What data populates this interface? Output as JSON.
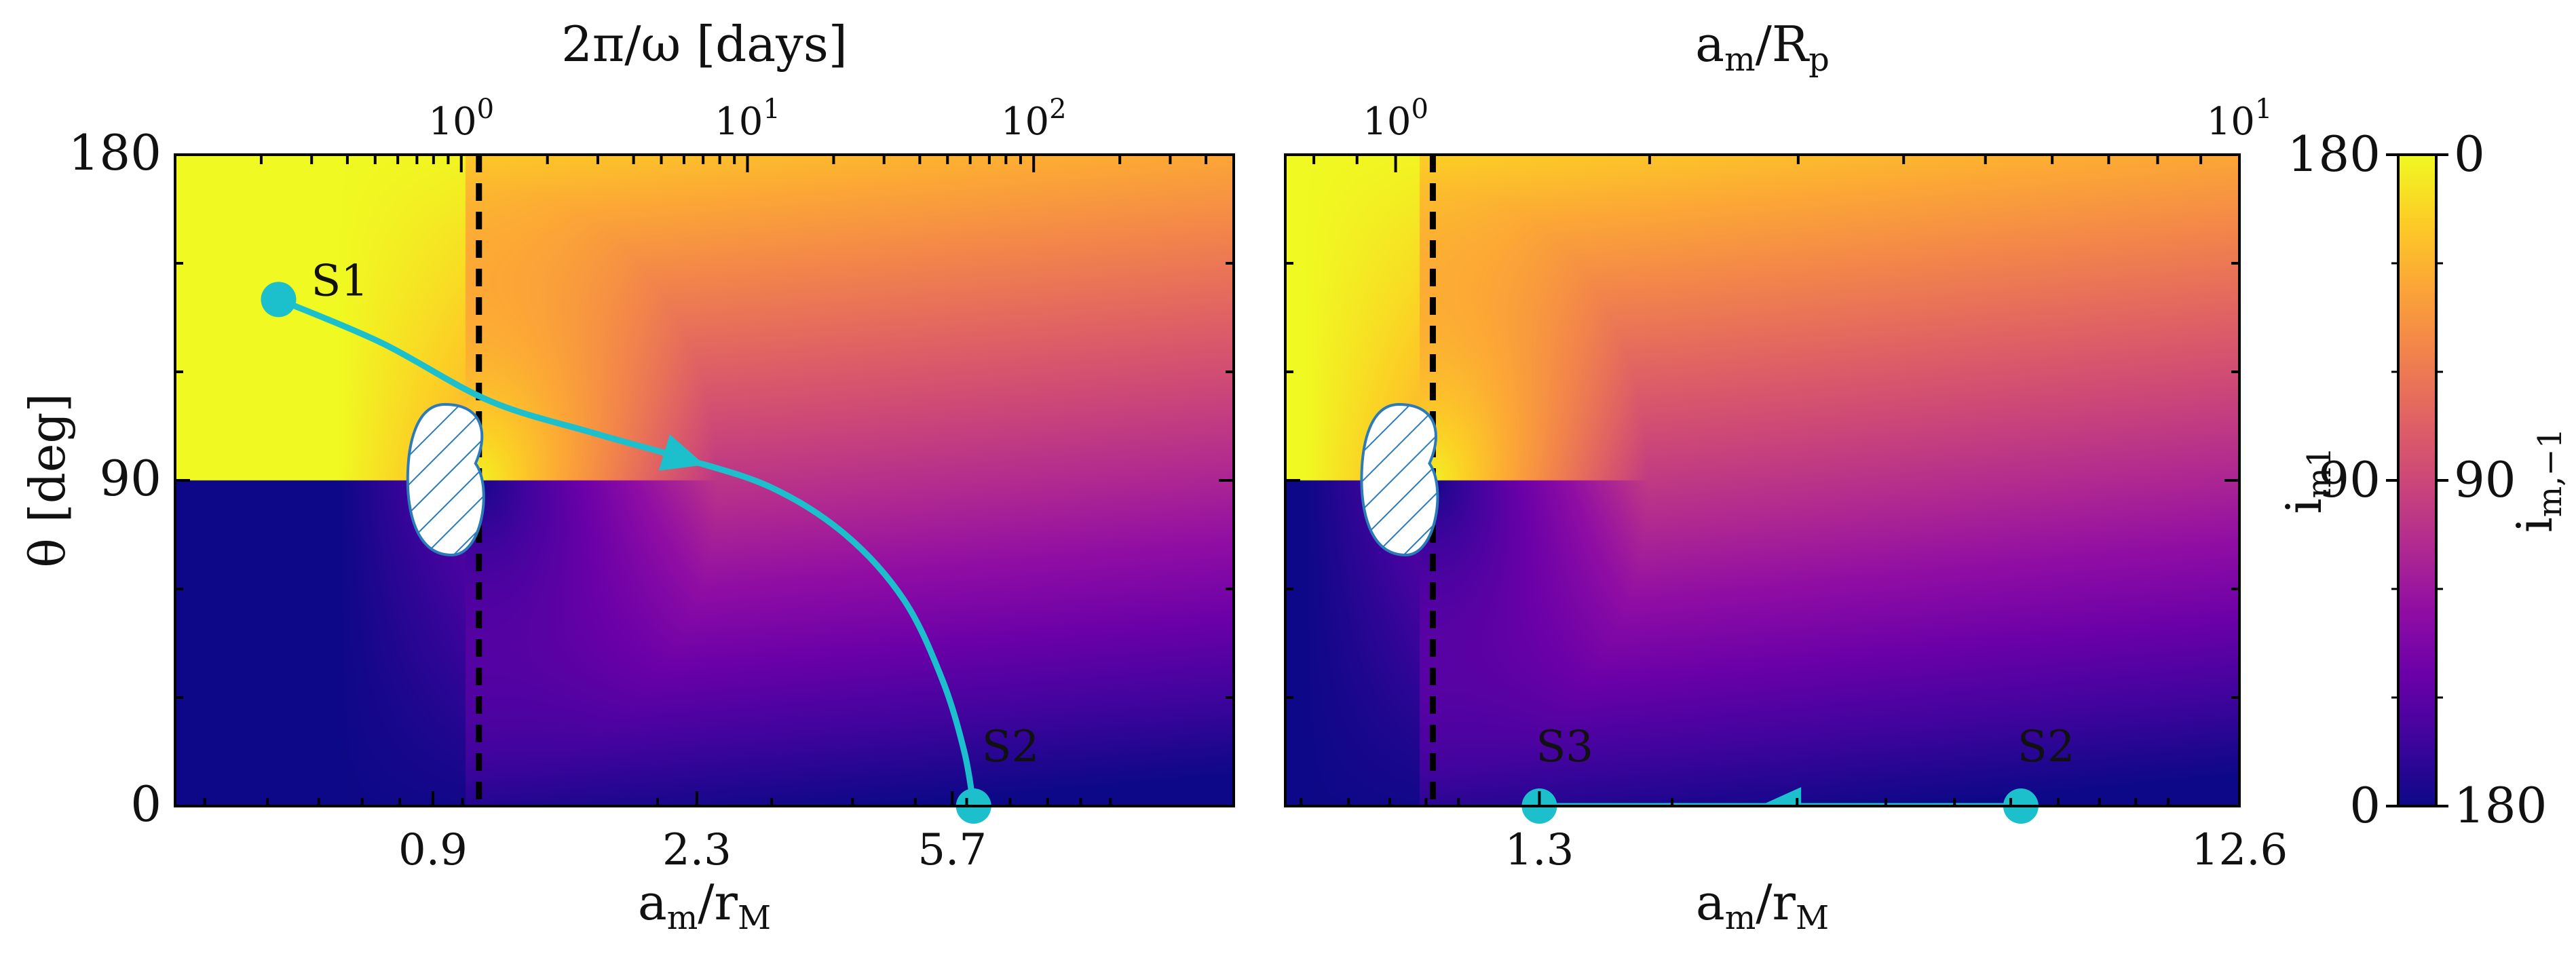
{
  "colormap": {
    "stops": [
      "#0d0887",
      "#3e049c",
      "#6a00a8",
      "#900da4",
      "#b12a90",
      "#cc4778",
      "#e16462",
      "#f2844b",
      "#fca636",
      "#fcce25",
      "#f0f921"
    ]
  },
  "colors": {
    "trajectory": "#1cbfcc",
    "hatch": "#2b7bb9",
    "reference_line": "#000000",
    "axes": "#000000"
  },
  "chart_data": [
    {
      "type": "heatmap",
      "name": "left-panel",
      "xlabel": "a_m/r_M",
      "ylabel": "θ [deg]",
      "top_xlabel": "2π/ω [days]",
      "xscale": "log",
      "x_ticks": [
        "0.9",
        "2.3",
        "5.7"
      ],
      "x_tick_values": [
        0.9,
        2.3,
        5.7
      ],
      "xlim": [
        0.36,
        15.5
      ],
      "top_ticks": [
        "10^0",
        "10^1",
        "10^2"
      ],
      "top_tick_values": [
        1,
        10,
        100
      ],
      "top_xlim": [
        0.1,
        500
      ],
      "y_ticks": [
        "0",
        "90",
        "180"
      ],
      "ylim": [
        0,
        180
      ],
      "reference_line_x": 1.06,
      "hatched_region": {
        "x_center": 0.95,
        "y_center": 90,
        "label": ""
      },
      "trajectory": {
        "x": [
          0.52,
          0.75,
          1.1,
          1.6,
          2.2,
          3.0,
          3.9,
          4.8,
          5.5,
          5.95,
          6.15
        ],
        "y": [
          140,
          128,
          112,
          103,
          96,
          88,
          75,
          57,
          35,
          15,
          0
        ],
        "start_label": "S1",
        "end_label": "S2",
        "arrow_direction": "forward"
      },
      "colorbar": "i_m1"
    },
    {
      "type": "heatmap",
      "name": "right-panel",
      "xlabel": "a_m/r_M",
      "top_xlabel": "a_m/R_p",
      "xscale": "log",
      "x_ticks": [
        "1.3",
        "12.6"
      ],
      "x_tick_values": [
        1.3,
        12.6
      ],
      "xlim": [
        0.57,
        12.6
      ],
      "top_ticks": [
        "10^0",
        "10^1"
      ],
      "top_tick_values": [
        1,
        10
      ],
      "top_xlim": [
        0.74,
        10
      ],
      "y_ticks": [],
      "ylim": [
        0,
        180
      ],
      "reference_line_x": 0.92,
      "trajectory": {
        "x": [
          6.2,
          1.3
        ],
        "y": [
          0,
          0
        ],
        "start_label": "S2",
        "end_label": "S3",
        "arrow_direction": "backward"
      },
      "colorbar": "i_m,-1"
    }
  ],
  "colorbar": {
    "left_label": "i_m1",
    "right_label": "i_m,-1",
    "left_ticks": [
      "0",
      "90",
      "180"
    ],
    "right_ticks": [
      "180",
      "90",
      "0"
    ]
  }
}
